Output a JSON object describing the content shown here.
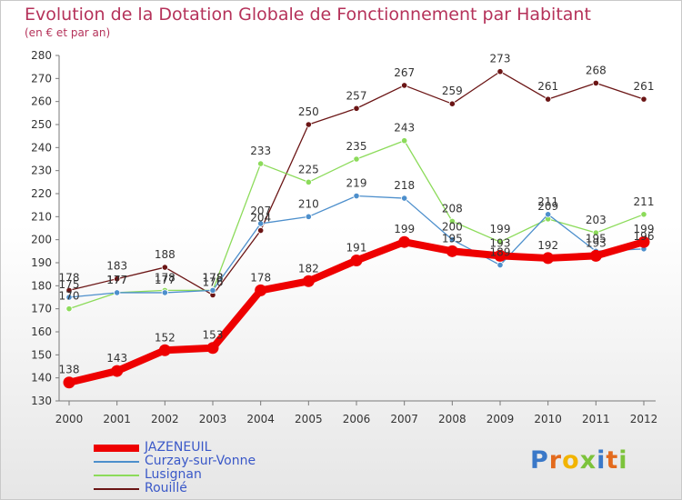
{
  "chart_data": {
    "type": "line",
    "title": "Evolution de la Dotation Globale de Fonctionnement par Habitant",
    "subtitle": "(en € et par an)",
    "x": [
      "2000",
      "2001",
      "2002",
      "2003",
      "2004",
      "2005",
      "2006",
      "2007",
      "2008",
      "2009",
      "2010",
      "2011",
      "2012"
    ],
    "ylim": [
      130,
      280
    ],
    "yticks": [
      130,
      140,
      150,
      160,
      170,
      180,
      190,
      200,
      210,
      220,
      230,
      240,
      250,
      260,
      270,
      280
    ],
    "grid": false,
    "legend": "bottom-left",
    "series": [
      {
        "name": "JAZENEUIL",
        "color": "#ee0000",
        "values": [
          138,
          143,
          152,
          153,
          178,
          182,
          191,
          199,
          195,
          193,
          192,
          193,
          199
        ],
        "labels": [
          "138",
          "143",
          "152",
          "153",
          "178",
          "182",
          "191",
          "199",
          "195",
          "193",
          "192",
          "193",
          "199"
        ]
      },
      {
        "name": "Curzay-sur-Vonne",
        "color": "#4d8fcc",
        "values": [
          175,
          177,
          177,
          178,
          207,
          210,
          219,
          218,
          200,
          189,
          211,
          195,
          196
        ],
        "labels": [
          "175",
          "177",
          "177",
          "178",
          "207",
          "210",
          "219",
          "218",
          "200",
          "189",
          "211",
          "195",
          "196"
        ]
      },
      {
        "name": "Lusignan",
        "color": "#8cdb5a",
        "values": [
          170,
          177,
          178,
          178,
          233,
          225,
          235,
          243,
          208,
          199,
          209,
          203,
          211
        ],
        "labels": [
          "170",
          "177",
          "178",
          "178",
          "233",
          "225",
          "235",
          "243",
          "208",
          "199",
          "209",
          "203",
          "211"
        ]
      },
      {
        "name": "Rouillé",
        "color": "#6b1515",
        "values": [
          178,
          183,
          188,
          176,
          204,
          250,
          257,
          267,
          259,
          273,
          261,
          268,
          261
        ],
        "labels": [
          "178",
          "183",
          "188",
          "176",
          "204",
          "250",
          "257",
          "267",
          "259",
          "273",
          "261",
          "268",
          "261"
        ]
      }
    ]
  },
  "logo": {
    "text": "Proxiti",
    "letters": [
      {
        "ch": "P",
        "color": "#3a78c8"
      },
      {
        "ch": "r",
        "color": "#e36a1d"
      },
      {
        "ch": "o",
        "color": "#f2b400"
      },
      {
        "ch": "x",
        "color": "#7cc33b"
      },
      {
        "ch": "i",
        "color": "#3a78c8"
      },
      {
        "ch": "t",
        "color": "#e36a1d"
      },
      {
        "ch": "i",
        "color": "#7cc33b"
      }
    ]
  }
}
